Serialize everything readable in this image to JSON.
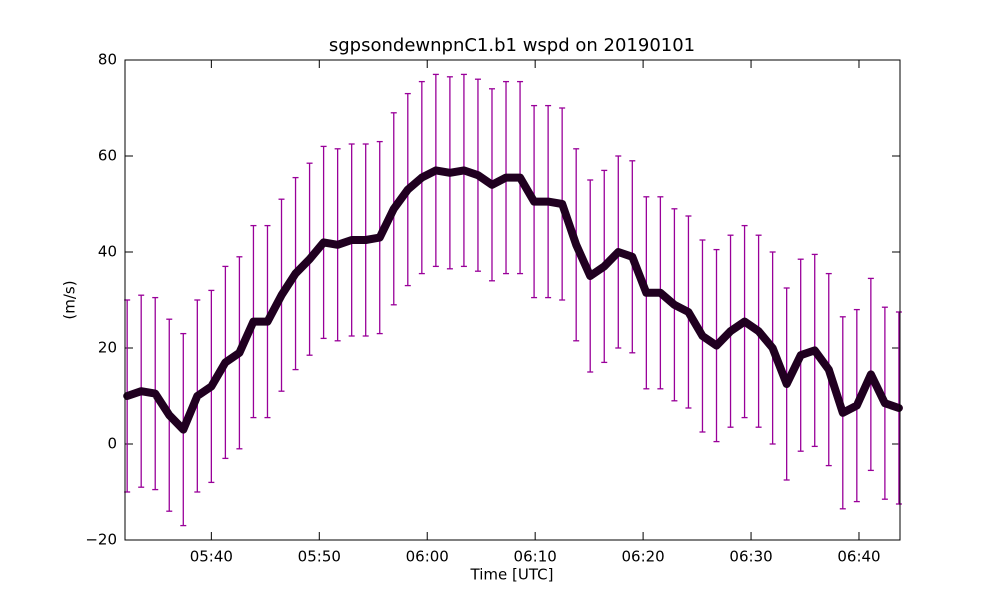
{
  "chart_data": {
    "type": "line",
    "title": "sgpsondewnpnC1.b1 wspd on 20190101",
    "xlabel": "Time [UTC]",
    "ylabel": "(m/s)",
    "x": [
      332.2,
      333.5,
      334.8,
      336.1,
      337.4,
      338.7,
      340.0,
      341.3,
      342.6,
      343.9,
      345.2,
      346.5,
      347.8,
      349.1,
      350.4,
      351.7,
      353.0,
      354.3,
      355.6,
      356.9,
      358.2,
      359.5,
      360.8,
      362.1,
      363.4,
      364.7,
      366.0,
      367.3,
      368.6,
      369.9,
      371.2,
      372.5,
      373.8,
      375.1,
      376.4,
      377.7,
      379.0,
      380.3,
      381.6,
      382.9,
      384.2,
      385.5,
      386.8,
      388.1,
      389.4,
      390.7,
      392.0,
      393.3,
      394.6,
      395.9,
      397.2,
      398.5,
      399.8,
      401.1,
      402.4,
      403.7
    ],
    "series": [
      {
        "color": "#200020",
        "error_color": "#990099",
        "values": [
          10,
          11,
          10.5,
          6,
          3,
          10,
          12,
          17,
          19,
          25.5,
          25.5,
          31,
          35.5,
          38.5,
          42,
          41.5,
          42.5,
          42.5,
          43,
          49,
          53,
          55.5,
          57,
          56.5,
          57,
          56,
          54,
          55.5,
          55.5,
          50.5,
          50.5,
          50,
          41.5,
          35,
          37,
          40,
          39,
          31.5,
          31.5,
          29,
          27.5,
          22.5,
          20.5,
          23.5,
          25.5,
          23.5,
          20,
          12.5,
          18.5,
          19.5,
          15.5,
          6.5,
          8,
          14.5,
          8.5,
          7.5
        ],
        "errors": [
          20,
          20,
          20,
          20,
          20,
          20,
          20,
          20,
          20,
          20,
          20,
          20,
          20,
          20,
          20,
          20,
          20,
          20,
          20,
          20,
          20,
          20,
          20,
          20,
          20,
          20,
          20,
          20,
          20,
          20,
          20,
          20,
          20,
          20,
          20,
          20,
          20,
          20,
          20,
          20,
          20,
          20,
          20,
          20,
          20,
          20,
          20,
          20,
          20,
          20,
          20,
          20,
          20,
          20,
          20,
          20
        ]
      }
    ],
    "xlim": [
      332,
      403.8
    ],
    "xticks": [
      {
        "value": 340,
        "label": "05:40"
      },
      {
        "value": 350,
        "label": "05:50"
      },
      {
        "value": 360,
        "label": "06:00"
      },
      {
        "value": 370,
        "label": "06:10"
      },
      {
        "value": 380,
        "label": "06:20"
      },
      {
        "value": 390,
        "label": "06:30"
      },
      {
        "value": 400,
        "label": "06:40"
      }
    ],
    "ylim": [
      -20,
      80
    ],
    "yticks": [
      {
        "value": -20,
        "label": "−20"
      },
      0,
      20,
      40,
      60,
      80
    ]
  }
}
